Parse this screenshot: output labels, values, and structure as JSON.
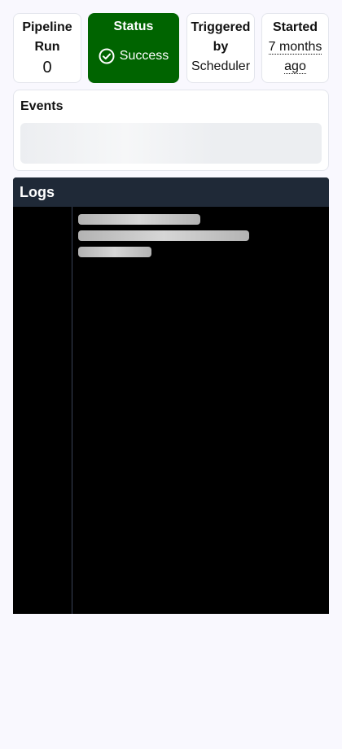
{
  "summary": {
    "pipeline_run": {
      "label": "Pipeline Run",
      "value": "0"
    },
    "status": {
      "label": "Status",
      "value": "Success",
      "icon": "check-circle-icon",
      "color": "#006400"
    },
    "triggered_by": {
      "label": "Triggered by",
      "value": "Scheduler"
    },
    "started": {
      "label": "Started",
      "value": "7 months ago"
    }
  },
  "events": {
    "title": "Events"
  },
  "logs": {
    "title": "Logs",
    "header_color": "#1f2937",
    "background": "#000000"
  }
}
